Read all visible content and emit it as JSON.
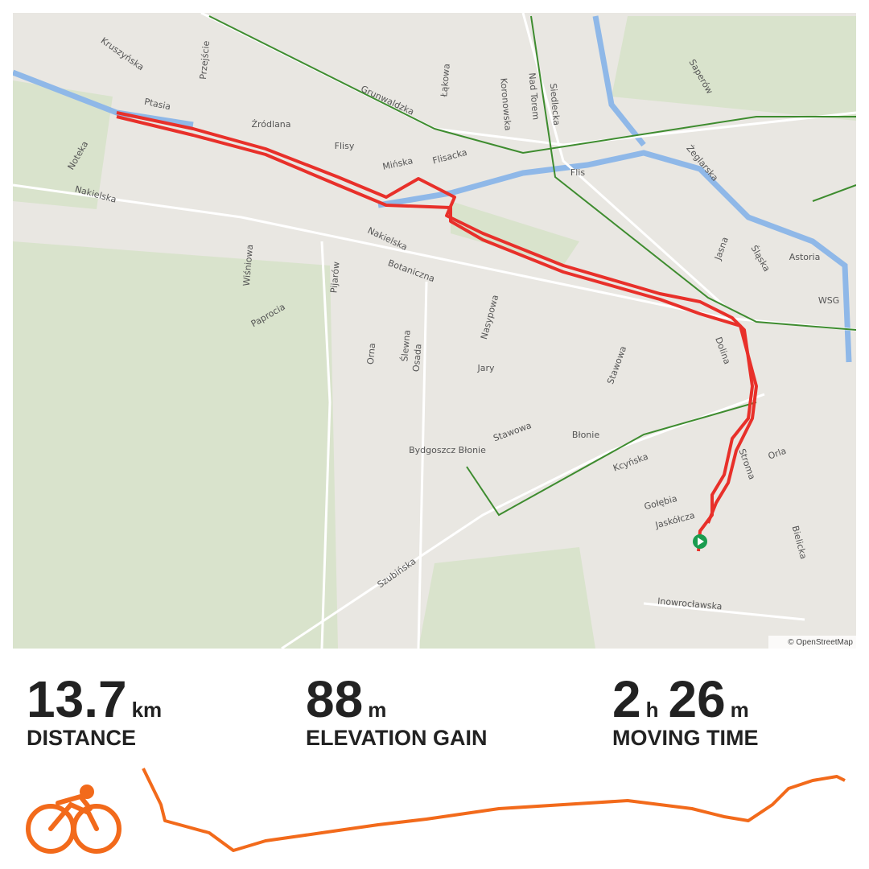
{
  "map": {
    "labels": [
      "Kruszyńska",
      "Ptasia",
      "Źródlana",
      "Przejście",
      "Grunwaldzka",
      "Łąkowa",
      "Koronowska",
      "Nad Torem",
      "Siedlecka",
      "Flisy",
      "Mińska",
      "Flisacka",
      "Flis",
      "Noteka",
      "Nakielska",
      "Nakielska",
      "Botaniczna",
      "Wiśniowa",
      "Pijarów",
      "Paprocia",
      "Orna",
      "Ślewna",
      "Osada",
      "Nasypowa",
      "Jary",
      "Stawowa",
      "Stawowa",
      "Błonie",
      "Bydgoszcz Błonie",
      "Kcyńska",
      "Gołębia",
      "Jaskółcza",
      "Stroma",
      "Orla",
      "Dolina",
      "Szubińska",
      "Inowrocławska",
      "Astoria",
      "WSG",
      "Jasna",
      "Śląska",
      "Żeglarska",
      "Saperów",
      "Bielicka"
    ],
    "attribution": "© OpenStreetMap"
  },
  "stats": [
    {
      "value": 13.7,
      "unit": "km",
      "label": "DISTANCE"
    },
    {
      "value": 88,
      "unit": "m",
      "label": "ELEVATION GAIN"
    },
    {
      "value": 2,
      "unit": "h",
      "value2": 26,
      "unit2": "m",
      "label": "MOVING TIME"
    }
  ]
}
